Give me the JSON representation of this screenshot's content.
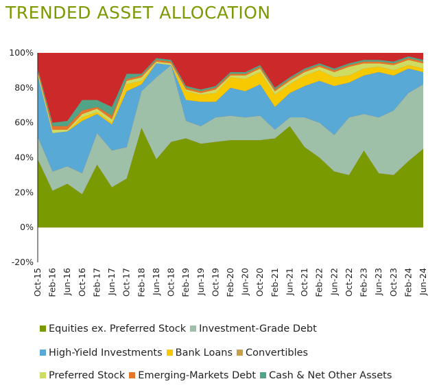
{
  "chart_data": {
    "type": "area",
    "stacked": true,
    "title": "TRENDED ASSET ALLOCATION",
    "title_color": "#7a9a01",
    "xlabel": "",
    "ylabel": "",
    "ylim": [
      -20,
      100
    ],
    "yticks": [
      -20,
      0,
      20,
      40,
      60,
      80,
      100
    ],
    "ytick_labels": [
      "-20%",
      "0%",
      "20%",
      "40%",
      "60%",
      "80%",
      "100%"
    ],
    "xtick_labels": [
      "Oct-15",
      "Feb-16",
      "Jun-16",
      "Oct-16",
      "Feb-17",
      "Jun-17",
      "Oct-17",
      "Feb-18",
      "Jun-18",
      "Oct-18",
      "Feb-19",
      "Jun-19",
      "Oct-19",
      "Feb-20",
      "Jun-20",
      "Oct-20",
      "Feb-21",
      "Jun-21",
      "Oct-21",
      "Feb-22",
      "Jun-22",
      "Oct-22",
      "Feb-23",
      "Jun-23",
      "Oct-23",
      "Feb-24",
      "Jun-24"
    ],
    "grid": false,
    "legend_position": "bottom",
    "x": [
      "Oct-15",
      "Feb-16",
      "Jun-16",
      "Oct-16",
      "Feb-17",
      "Jun-17",
      "Oct-17",
      "Feb-18",
      "Jun-18",
      "Oct-18",
      "Feb-19",
      "Jun-19",
      "Oct-19",
      "Feb-20",
      "Jun-20",
      "Oct-20",
      "Feb-21",
      "Jun-21",
      "Oct-21",
      "Feb-22",
      "Jun-22",
      "Oct-22",
      "Feb-23",
      "Jun-23",
      "Oct-23",
      "Feb-24",
      "Jun-24"
    ],
    "series": [
      {
        "name": "Equities ex. Preferred Stock",
        "color": "#7a9a01",
        "values": [
          39,
          21,
          25,
          19,
          36,
          23,
          28,
          57,
          39,
          49,
          51,
          48,
          49,
          50,
          50,
          50,
          51,
          58,
          46,
          40,
          32,
          30,
          44,
          31,
          30,
          38,
          45
        ]
      },
      {
        "name": "Investment-Grade Debt",
        "color": "#9fc0a8",
        "values": [
          13,
          11,
          10,
          12,
          18,
          21,
          18,
          21,
          47,
          44,
          10,
          10,
          14,
          14,
          13,
          14,
          5,
          5,
          17,
          20,
          21,
          33,
          21,
          32,
          37,
          39,
          37
        ]
      },
      {
        "name": "High-Yield Investments",
        "color": "#59a9d6",
        "values": [
          35,
          22,
          20,
          30,
          11,
          15,
          32,
          4,
          8,
          0,
          12,
          14,
          9,
          16,
          15,
          18,
          13,
          14,
          18,
          24,
          28,
          20,
          22,
          26,
          20,
          14,
          7
        ]
      },
      {
        "name": "Bank Loans",
        "color": "#f6c900",
        "values": [
          0,
          0,
          0,
          2,
          1,
          1,
          4,
          2,
          0,
          0,
          5,
          4,
          5,
          6,
          7,
          7,
          7,
          5,
          6,
          6,
          5,
          4,
          4,
          3,
          3,
          2,
          2
        ]
      },
      {
        "name": "Convertibles",
        "color": "#c8a04a",
        "values": [
          0,
          0,
          0,
          0,
          0,
          0,
          0,
          0,
          0,
          0,
          0,
          0,
          0,
          0,
          0,
          0,
          0,
          0,
          0,
          0,
          0,
          0,
          0,
          0,
          0,
          0,
          0
        ]
      },
      {
        "name": "Preferred Stock",
        "color": "#cfdc64",
        "values": [
          2,
          2,
          1,
          2,
          2,
          2,
          2,
          2,
          1,
          1,
          1,
          1,
          2,
          1,
          2,
          2,
          2,
          2,
          2,
          2,
          3,
          5,
          3,
          2,
          3,
          3,
          3
        ]
      },
      {
        "name": "Emerging-Markets Debt",
        "color": "#e5762a",
        "values": [
          1,
          2,
          2,
          2,
          1,
          2,
          1,
          1,
          1,
          1,
          1,
          1,
          1,
          1,
          1,
          1,
          1,
          1,
          1,
          1,
          1,
          1,
          1,
          1,
          1,
          1,
          1
        ]
      },
      {
        "name": "Cash & Net Other Assets",
        "color": "#52a487",
        "values": [
          1,
          2,
          3,
          6,
          4,
          5,
          3,
          1,
          1,
          1,
          1,
          1,
          1,
          1,
          1,
          1,
          1,
          1,
          1,
          1,
          1,
          1,
          1,
          1,
          1,
          1,
          1
        ]
      }
    ],
    "gap_series_color": "#cc2a2a"
  },
  "legend": {
    "rows": [
      [
        0,
        1
      ],
      [
        2,
        3,
        4
      ],
      [
        5,
        6,
        7
      ]
    ]
  }
}
